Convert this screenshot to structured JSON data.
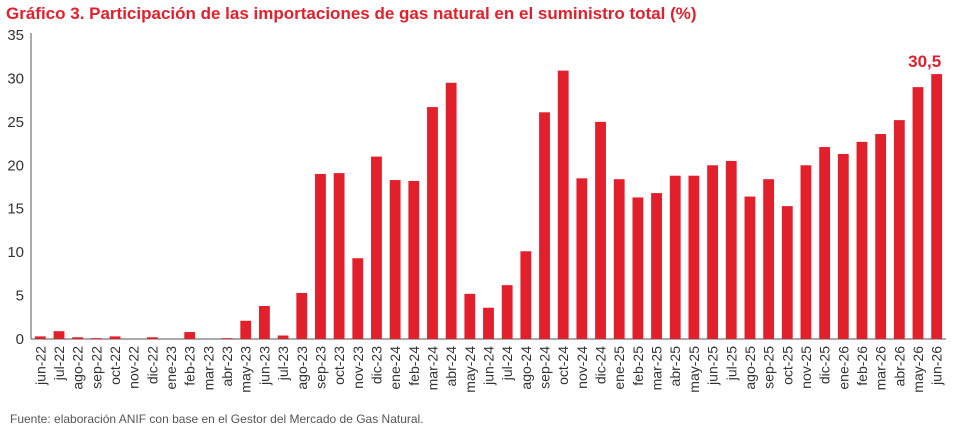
{
  "title": "Gráfico 3. Participación de las importaciones de gas natural en el suministro total (%)",
  "source": "Fuente: elaboración ANIF con base en el Gestor del Mercado de Gas Natural.",
  "colors": {
    "bar": "#e2202c",
    "title": "#e2202c",
    "axis": "#555555"
  },
  "chart_data": {
    "type": "bar",
    "title": "Gráfico 3. Participación de las importaciones de gas natural en el suministro total (%)",
    "xlabel": "",
    "ylabel": "",
    "ylim": [
      0,
      35
    ],
    "yticks": [
      0,
      5,
      10,
      15,
      20,
      25,
      30,
      35
    ],
    "grid": false,
    "legend": "none",
    "categories": [
      "jun-22",
      "jul-22",
      "ago-22",
      "sep-22",
      "oct-22",
      "nov-22",
      "dic-22",
      "ene-23",
      "feb-23",
      "mar-23",
      "abr-23",
      "may-23",
      "jun-23",
      "jul-23",
      "ago-23",
      "sep-23",
      "oct-23",
      "nov-23",
      "dic-23",
      "ene-24",
      "feb-24",
      "mar-24",
      "abr-24",
      "may-24",
      "jun-24",
      "jul-24",
      "ago-24",
      "sep-24",
      "oct-24",
      "nov-24",
      "dic-24",
      "ene-25",
      "feb-25",
      "mar-25",
      "abr-25",
      "may-25",
      "jun-25",
      "jul-25",
      "ago-25",
      "sep-25",
      "oct-25",
      "nov-25",
      "dic-25",
      "ene-26",
      "feb-26",
      "mar-26",
      "abr-26",
      "may-26",
      "jun-26"
    ],
    "tick_labels": [
      "jun-22",
      "jul-22",
      "ago-22",
      "sep-22",
      "oct-22",
      "nov-22",
      "dic-22",
      "ene-23",
      "feb-23",
      "mar-23",
      "abr-23",
      "may-23",
      "jun-23",
      "jul-23",
      "ago-23",
      "sep-23",
      "oct-23",
      "nov-23",
      "dic-23",
      "ene-24",
      "feb-24",
      "mar-24",
      "abr-24",
      "may-24",
      "jun-24",
      "jul-24",
      "ago-24",
      "sep-24",
      "oct-24",
      "nov-24",
      "dic-24",
      "ene-25",
      "feb-25",
      "mar-25",
      "abr-25",
      "may-25",
      "jun-25",
      "jul-25",
      "ago-25",
      "sep-25",
      "oct-25",
      "nov-25",
      "dic-25",
      "ene-26",
      "feb-26",
      "mar-26",
      "abr-26",
      "may-26",
      "jun-26"
    ],
    "values": [
      0.3,
      0.9,
      0.2,
      0.1,
      0.3,
      0.0,
      0.2,
      0.0,
      0.8,
      0.0,
      0.1,
      2.1,
      3.8,
      0.4,
      5.3,
      19.0,
      19.1,
      9.3,
      21.0,
      18.3,
      18.2,
      26.7,
      29.5,
      5.2,
      3.6,
      6.2,
      10.1,
      26.1,
      30.9,
      18.5,
      25.0,
      18.4,
      16.3,
      16.8,
      18.8,
      18.8,
      20.0,
      20.5,
      16.4,
      18.4,
      15.3,
      20.0,
      22.1,
      21.3,
      22.7,
      23.6,
      25.2,
      29.0,
      30.5
    ],
    "data_labels": [
      {
        "text": "30,5",
        "category": "jun-26",
        "color": "#e2202c"
      }
    ]
  }
}
